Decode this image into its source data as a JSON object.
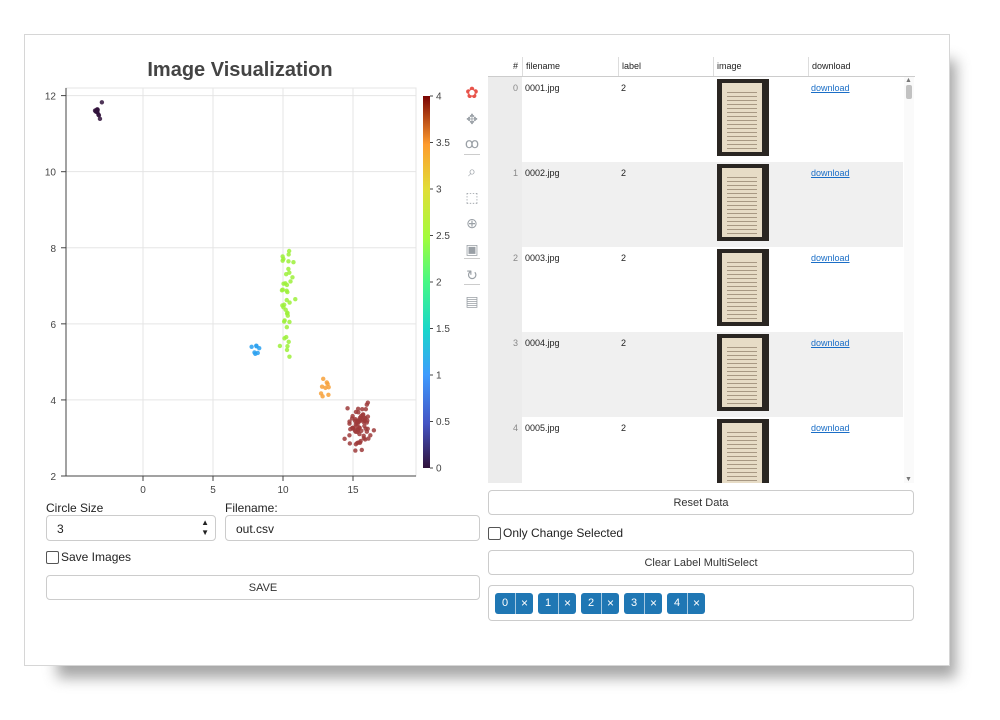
{
  "plot": {
    "title": "Image Visualization",
    "colorbar_ticks": [
      "0",
      "0.5",
      "1",
      "1.5",
      "2",
      "2.5",
      "3",
      "3.5",
      "4"
    ],
    "tools": [
      {
        "name": "bokeh-logo-icon",
        "glyph": "✿"
      },
      {
        "name": "pan-icon",
        "glyph": "✥"
      },
      {
        "name": "lasso-select-icon",
        "glyph": "ꝏ"
      },
      {
        "name": "box-zoom-icon",
        "glyph": "⌕"
      },
      {
        "name": "box-select-icon",
        "glyph": "⬚"
      },
      {
        "name": "wheel-zoom-icon",
        "glyph": "⊕"
      },
      {
        "name": "save-icon",
        "glyph": "▣"
      },
      {
        "name": "reset-icon",
        "glyph": "↻"
      },
      {
        "name": "hover-icon",
        "glyph": "▤"
      }
    ]
  },
  "chart_data": {
    "type": "scatter",
    "title": "Image Visualization",
    "xlim": [
      -5.5,
      19.5
    ],
    "ylim": [
      2,
      12.2
    ],
    "x_ticks": [
      0,
      5,
      10,
      15
    ],
    "y_ticks": [
      2,
      4,
      6,
      8,
      10,
      12
    ],
    "color_scale": {
      "min": 0,
      "max": 4,
      "palette": "Turbo"
    },
    "grid": true,
    "clusters": [
      {
        "label": 0,
        "center": [
          -3.2,
          11.6
        ],
        "spread": [
          0.35,
          0.22
        ],
        "count": 12
      },
      {
        "label": 1,
        "center": [
          8.2,
          5.35
        ],
        "spread": [
          0.3,
          0.15
        ],
        "count": 7
      },
      {
        "label": 2,
        "center": [
          10.4,
          6.6
        ],
        "spread": [
          0.55,
          1.3
        ],
        "count": 40
      },
      {
        "label": 3,
        "center": [
          13.0,
          4.35
        ],
        "spread": [
          0.35,
          0.3
        ],
        "count": 9
      },
      {
        "label": 4,
        "center": [
          15.5,
          3.3
        ],
        "spread": [
          0.8,
          0.55
        ],
        "count": 70
      }
    ]
  },
  "controls": {
    "circle_size_label": "Circle Size",
    "circle_size_value": "3",
    "filename_label": "Filename:",
    "filename_value": "out.csv",
    "save_images_label": "Save Images",
    "save_button": "SAVE"
  },
  "table": {
    "columns": [
      "#",
      "filename",
      "label",
      "image",
      "download"
    ],
    "rows": [
      {
        "index": "0",
        "filename": "0001.jpg",
        "label": "2",
        "download": "download"
      },
      {
        "index": "1",
        "filename": "0002.jpg",
        "label": "2",
        "download": "download"
      },
      {
        "index": "2",
        "filename": "0003.jpg",
        "label": "2",
        "download": "download"
      },
      {
        "index": "3",
        "filename": "0004.jpg",
        "label": "2",
        "download": "download"
      },
      {
        "index": "4",
        "filename": "0005.jpg",
        "label": "2",
        "download": "download"
      }
    ]
  },
  "right_controls": {
    "reset_button": "Reset Data",
    "only_change_selected_label": "Only Change Selected",
    "clear_multiselect_button": "Clear Label MultiSelect",
    "chips": [
      "0",
      "1",
      "2",
      "3",
      "4"
    ],
    "chip_close": "×"
  }
}
